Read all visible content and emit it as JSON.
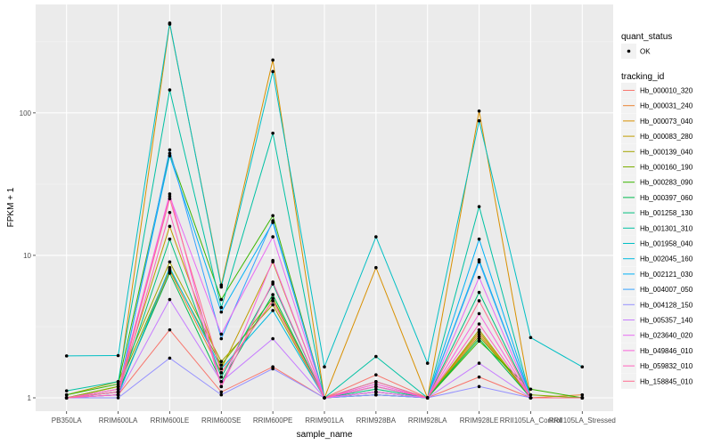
{
  "chart_data": {
    "type": "line",
    "title": "",
    "xlabel": "sample_name",
    "ylabel": "FPKM + 1",
    "yscale": "log10",
    "ylim": [
      0.806,
      577
    ],
    "yticks": [
      1,
      10,
      100
    ],
    "ytick_labels": [
      "1",
      "10",
      "100"
    ],
    "grid": true,
    "categories": [
      "PB350LA",
      "RRIM600LA",
      "RRIM600LE",
      "RRIM600SE",
      "RRIM600PE",
      "RRIM901LA",
      "RRIM928BA",
      "RRIM928LA",
      "RRIM928LE",
      "RRII105LA_Control",
      "RRII105LA_Stressed"
    ],
    "legend_placement": "right",
    "legends": [
      {
        "title": "quant_status",
        "entries": [
          "OK"
        ]
      },
      {
        "title": "tracking_id"
      }
    ],
    "series": [
      {
        "name": "Hb_000010_320",
        "color": "#F8766D",
        "values": [
          1,
          1.05,
          3.0,
          1.1,
          1.65,
          1,
          1.45,
          1,
          1.4,
          1,
          1
        ]
      },
      {
        "name": "Hb_000031_240",
        "color": "#EA8331",
        "values": [
          1,
          1.1,
          7.8,
          1.5,
          4.8,
          1,
          1.2,
          1,
          2.8,
          1,
          1.05
        ]
      },
      {
        "name": "Hb_000073_040",
        "color": "#D89000",
        "values": [
          1,
          1.2,
          420,
          6.2,
          235,
          1,
          8.2,
          1,
          103,
          1,
          1
        ]
      },
      {
        "name": "Hb_000083_280",
        "color": "#C09B00",
        "values": [
          1,
          1.15,
          16,
          1.6,
          9,
          1,
          1.1,
          1,
          2.9,
          1,
          1
        ]
      },
      {
        "name": "Hb_000139_040",
        "color": "#A3A500",
        "values": [
          1.05,
          1.3,
          9,
          1.8,
          4.5,
          1,
          1.05,
          1,
          3.0,
          1,
          1
        ]
      },
      {
        "name": "Hb_000160_190",
        "color": "#7CAE00",
        "values": [
          1,
          1.2,
          8,
          1.7,
          5,
          1,
          1.1,
          1,
          2.7,
          1.05,
          1
        ]
      },
      {
        "name": "Hb_000283_090",
        "color": "#39B600",
        "values": [
          1.05,
          1.25,
          52,
          4.9,
          19,
          1,
          1.1,
          1,
          2.5,
          1.15,
          1
        ]
      },
      {
        "name": "Hb_000397_060",
        "color": "#00BB4E",
        "values": [
          1,
          1.1,
          7.5,
          1.3,
          5.3,
          1,
          1.05,
          1,
          2.6,
          1,
          1
        ]
      },
      {
        "name": "Hb_001258_130",
        "color": "#00BF7D",
        "values": [
          1,
          1.1,
          13,
          1.4,
          6.3,
          1,
          1.15,
          1,
          5.5,
          1,
          1
        ]
      },
      {
        "name": "Hb_001301_310",
        "color": "#00C1A3",
        "values": [
          1.12,
          1.3,
          145,
          4.3,
          72,
          1,
          1.95,
          1,
          22,
          1,
          1
        ]
      },
      {
        "name": "Hb_001958_040",
        "color": "#00BFC4",
        "values": [
          1.97,
          1.98,
          427,
          6,
          195,
          1.65,
          13.5,
          1.75,
          88,
          2.65,
          1.65
        ]
      },
      {
        "name": "Hb_002045_160",
        "color": "#00BAE0",
        "values": [
          1,
          1.05,
          8.2,
          1.6,
          4.1,
          1,
          1.3,
          1,
          9.3,
          1,
          1
        ]
      },
      {
        "name": "Hb_002121_030",
        "color": "#00B0F6",
        "values": [
          1,
          1.1,
          50,
          4.0,
          17,
          1,
          1.2,
          1,
          13,
          1,
          1
        ]
      },
      {
        "name": "Hb_004007_050",
        "color": "#35A2FF",
        "values": [
          1,
          1.05,
          55,
          2.6,
          17.5,
          1,
          1.05,
          1,
          9,
          1,
          1
        ]
      },
      {
        "name": "Hb_004128_150",
        "color": "#9590FF",
        "values": [
          1,
          1.0,
          1.9,
          1.05,
          1.6,
          1,
          1.05,
          1,
          1.2,
          1,
          1
        ]
      },
      {
        "name": "Hb_005357_140",
        "color": "#C77CFF",
        "values": [
          1,
          1.05,
          4.9,
          1.3,
          2.6,
          1,
          1.1,
          1,
          1.75,
          1,
          1
        ]
      },
      {
        "name": "Hb_023640_020",
        "color": "#E76BF3",
        "values": [
          1,
          1.1,
          26,
          2.8,
          13.5,
          1,
          1.1,
          1,
          7,
          1,
          1
        ]
      },
      {
        "name": "Hb_049846_010",
        "color": "#FA62DB",
        "values": [
          1,
          1.15,
          27,
          1.2,
          9.2,
          1,
          1.25,
          1,
          3.9,
          1,
          1
        ]
      },
      {
        "name": "Hb_059832_010",
        "color": "#FF62BC",
        "values": [
          1,
          1.05,
          20,
          1.2,
          6.5,
          1,
          1.2,
          1,
          3.3,
          1,
          1
        ]
      },
      {
        "name": "Hb_158845_010",
        "color": "#FF6C91",
        "values": [
          1,
          1.1,
          25,
          1.5,
          4.8,
          1,
          1.3,
          1,
          4.8,
          1,
          1
        ]
      }
    ]
  }
}
